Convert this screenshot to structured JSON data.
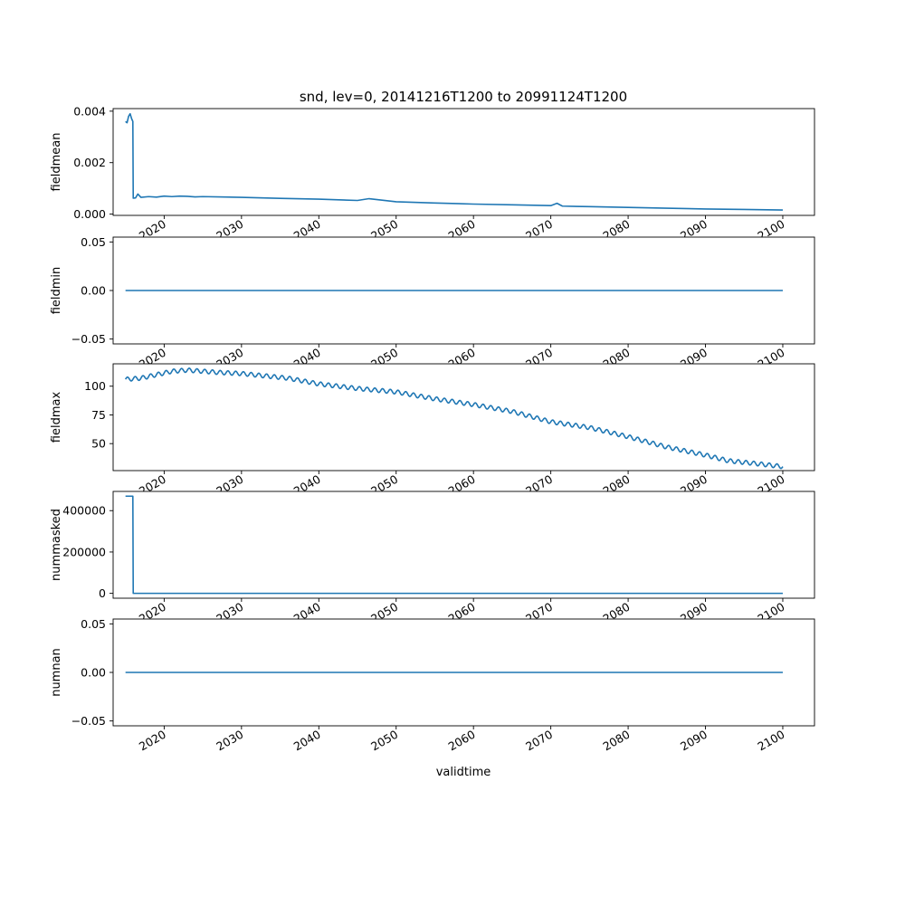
{
  "title": "snd, lev=0, 20141216T1200 to 20991124T1200",
  "xlabel": "validtime",
  "line_color": "#1f77b4",
  "chart_data": [
    {
      "type": "line",
      "ylabel": "fieldmean",
      "ylim": [
        -5e-05,
        0.0041
      ],
      "yticks": [
        0.0,
        0.002,
        0.004
      ],
      "yticklabels": [
        "0.000",
        "0.002",
        "0.004"
      ],
      "xlim": [
        2013.4,
        2104.1
      ],
      "xticks": [
        2020,
        2030,
        2040,
        2050,
        2060,
        2070,
        2080,
        2090,
        2100
      ],
      "xticklabels": [
        "2020",
        "2030",
        "2040",
        "2050",
        "2060",
        "2070",
        "2080",
        "2090",
        "2100"
      ],
      "grid": false,
      "x": [
        2015.0,
        2015.2,
        2015.4,
        2015.6,
        2015.8,
        2015.95,
        2016.0,
        2016.3,
        2016.6,
        2017.0,
        2018.0,
        2019.0,
        2020.0,
        2021.0,
        2022.0,
        2023.0,
        2024.0,
        2025.0,
        2030.0,
        2035.0,
        2040.0,
        2045.0,
        2046.5,
        2050.0,
        2055.0,
        2060.0,
        2065.0,
        2070.0,
        2070.8,
        2071.5,
        2075.0,
        2080.0,
        2085.0,
        2090.0,
        2095.0,
        2100.0
      ],
      "y": [
        0.0036,
        0.00355,
        0.0038,
        0.0039,
        0.0037,
        0.0036,
        0.00062,
        0.00063,
        0.00078,
        0.00065,
        0.00068,
        0.00066,
        0.0007,
        0.00068,
        0.0007,
        0.00069,
        0.00067,
        0.00068,
        0.00065,
        0.00061,
        0.00058,
        0.00053,
        0.0006,
        0.00048,
        0.00043,
        0.00039,
        0.00036,
        0.00033,
        0.00042,
        0.00031,
        0.00029,
        0.00026,
        0.00023,
        0.0002,
        0.00018,
        0.00016
      ]
    },
    {
      "type": "line",
      "ylabel": "fieldmin",
      "ylim": [
        -0.055,
        0.055
      ],
      "yticks": [
        -0.05,
        0.0,
        0.05
      ],
      "yticklabels": [
        "−0.05",
        "0.00",
        "0.05"
      ],
      "xlim": [
        2013.4,
        2104.1
      ],
      "xticks": [
        2020,
        2030,
        2040,
        2050,
        2060,
        2070,
        2080,
        2090,
        2100
      ],
      "xticklabels": [
        "2020",
        "2030",
        "2040",
        "2050",
        "2060",
        "2070",
        "2080",
        "2090",
        "2100"
      ],
      "grid": false,
      "x": [
        2015.0,
        2100.0
      ],
      "y": [
        0.0,
        0.0
      ]
    },
    {
      "type": "line",
      "ylabel": "fieldmax",
      "ylim": [
        26.5,
        119.5
      ],
      "yticks": [
        50,
        75,
        100
      ],
      "yticklabels": [
        "50",
        "75",
        "100"
      ],
      "xlim": [
        2013.4,
        2104.1
      ],
      "xticks": [
        2020,
        2030,
        2040,
        2050,
        2060,
        2070,
        2080,
        2090,
        2100
      ],
      "xticklabels": [
        "2020",
        "2030",
        "2040",
        "2050",
        "2060",
        "2070",
        "2080",
        "2090",
        "2100"
      ],
      "grid": false,
      "x": [
        2015,
        2017,
        2019,
        2021,
        2023,
        2025,
        2027,
        2030,
        2033,
        2036,
        2040,
        2045,
        2050,
        2055,
        2060,
        2065,
        2070,
        2075,
        2080,
        2085,
        2090,
        2093,
        2096,
        2100
      ],
      "y": [
        106,
        107,
        110,
        113,
        114,
        113,
        112,
        111,
        109,
        107,
        102,
        98,
        95,
        89,
        84,
        78,
        69,
        64,
        56,
        47,
        40,
        35,
        33,
        30
      ],
      "wiggle_amplitude": 1.8,
      "wiggle_period_years": 1.0
    },
    {
      "type": "line",
      "ylabel": "nummasked",
      "ylim": [
        -23500,
        493000
      ],
      "yticks": [
        0,
        200000,
        400000
      ],
      "yticklabels": [
        "0",
        "200000",
        "400000"
      ],
      "xlim": [
        2013.4,
        2104.1
      ],
      "xticks": [
        2020,
        2030,
        2040,
        2050,
        2060,
        2070,
        2080,
        2090,
        2100
      ],
      "xticklabels": [
        "2020",
        "2030",
        "2040",
        "2050",
        "2060",
        "2070",
        "2080",
        "2090",
        "2100"
      ],
      "grid": false,
      "x": [
        2015.0,
        2015.95,
        2016.0,
        2100.0
      ],
      "y": [
        470000,
        470000,
        0,
        0
      ]
    },
    {
      "type": "line",
      "ylabel": "numnan",
      "ylim": [
        -0.055,
        0.055
      ],
      "yticks": [
        -0.05,
        0.0,
        0.05
      ],
      "yticklabels": [
        "−0.05",
        "0.00",
        "0.05"
      ],
      "xlim": [
        2013.4,
        2104.1
      ],
      "xticks": [
        2020,
        2030,
        2040,
        2050,
        2060,
        2070,
        2080,
        2090,
        2100
      ],
      "xticklabels": [
        "2020",
        "2030",
        "2040",
        "2050",
        "2060",
        "2070",
        "2080",
        "2090",
        "2100"
      ],
      "grid": false,
      "x": [
        2015.0,
        2100.0
      ],
      "y": [
        0.0,
        0.0
      ]
    }
  ]
}
